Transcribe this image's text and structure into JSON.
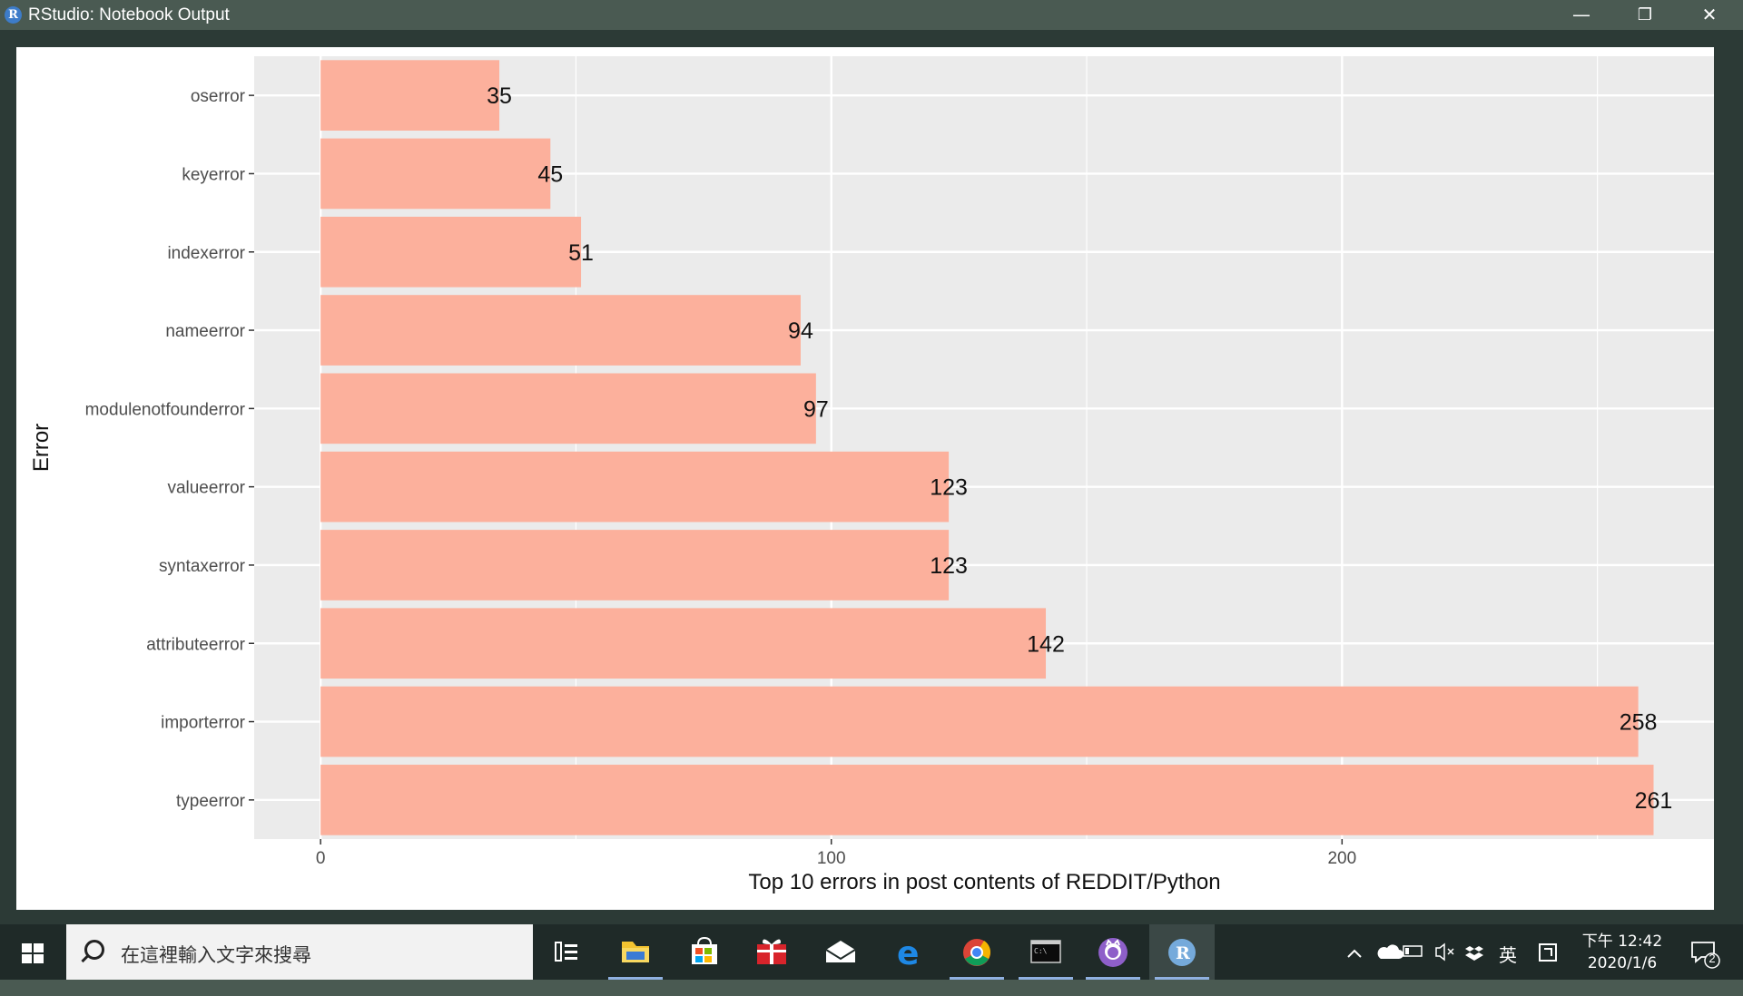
{
  "window": {
    "title": "RStudio: Notebook Output",
    "app_icon_letter": "R",
    "minimize": "—",
    "maximize": "❐",
    "close": "✕"
  },
  "chart_data": {
    "type": "bar",
    "orientation": "horizontal",
    "categories": [
      "oserror",
      "keyerror",
      "indexerror",
      "nameerror",
      "modulenotfounderror",
      "valueerror",
      "syntaxerror",
      "attributeerror",
      "importerror",
      "typeerror"
    ],
    "values": [
      35,
      45,
      51,
      94,
      97,
      123,
      123,
      142,
      258,
      261
    ],
    "xlabel": "Top 10 errors in post contents of REDDIT/Python",
    "ylabel": "Error",
    "xlim": [
      -13,
      273
    ],
    "xticks": [
      0,
      100,
      200
    ],
    "xtick_labels": [
      "0",
      "100",
      "200"
    ],
    "grid": true,
    "bar_color": "#fcb09c",
    "panel_color": "#ebebeb",
    "grid_color": "#ffffff"
  },
  "taskbar": {
    "search_placeholder": "在這裡輸入文字來搜尋",
    "tray_ime": "英",
    "time": "下午 12:42",
    "date": "2020/1/6",
    "notification_count": "2",
    "icons": [
      "task-view-icon",
      "file-explorer-icon",
      "store-icon",
      "gift-icon",
      "mail-icon",
      "edge-icon",
      "chrome-icon",
      "terminal-icon",
      "github-icon",
      "rstudio-icon"
    ]
  }
}
